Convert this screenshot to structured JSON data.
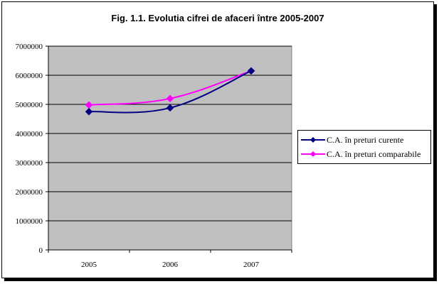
{
  "chart_data": {
    "type": "line",
    "title": "Fig. 1.1. Evolutia cifrei de afaceri între 2005-2007",
    "categories": [
      "2005",
      "2006",
      "2007"
    ],
    "series": [
      {
        "name": "C.A. în preturi curente",
        "values": [
          4750000,
          4880000,
          6150000
        ],
        "color": "#000080"
      },
      {
        "name": "C.A. în preturi comparabile",
        "values": [
          4980000,
          5200000,
          6150000
        ],
        "color": "#FF00FF"
      }
    ],
    "ylim": [
      0,
      7000000
    ],
    "yticks": [
      "0",
      "1000000",
      "2000000",
      "3000000",
      "4000000",
      "5000000",
      "6000000",
      "7000000"
    ],
    "plot_background": "#C0C0C0",
    "grid": true,
    "legend_position": "right"
  }
}
